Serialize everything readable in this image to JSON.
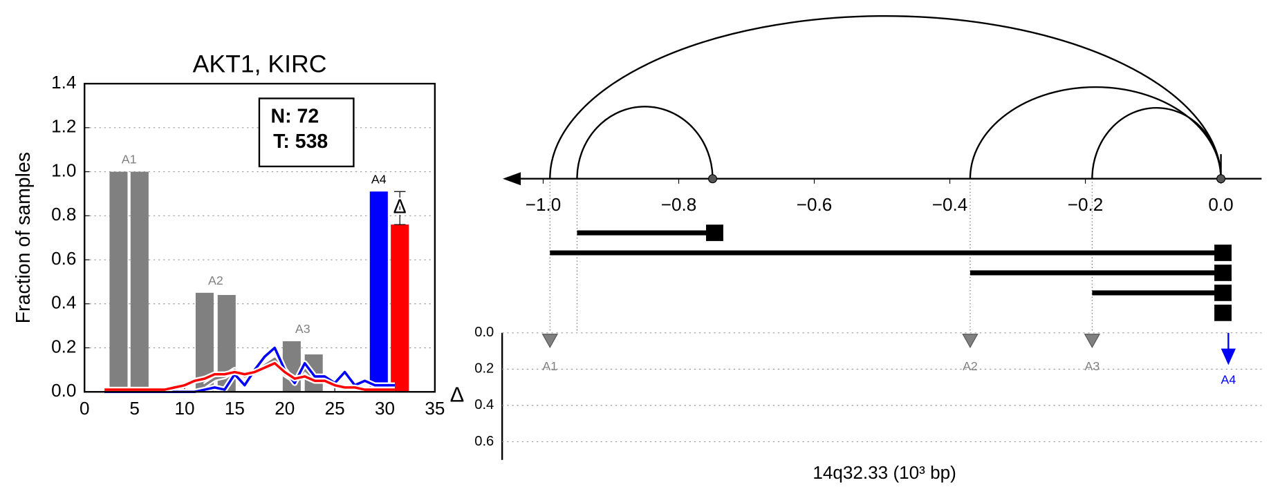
{
  "chart_data": [
    {
      "type": "bar",
      "title": "AKT1, KIRC",
      "ylabel": "Fraction of samples",
      "xlim": [
        0,
        35
      ],
      "xticks": [
        0,
        5,
        10,
        15,
        20,
        25,
        30,
        35
      ],
      "ylim": [
        0,
        1.4
      ],
      "yticks": [
        {
          "value": 0,
          "label": "0.0"
        },
        {
          "value": 0.2,
          "label": "0.2"
        },
        {
          "value": 0.4,
          "label": "0.4"
        },
        {
          "value": 0.6,
          "label": "0.6"
        },
        {
          "value": 0.8,
          "label": "0.8"
        },
        {
          "value": 1.0,
          "label": "1.0"
        },
        {
          "value": 1.2,
          "label": "1.2"
        },
        {
          "value": 1.4,
          "label": "1.4"
        }
      ],
      "grid": true,
      "box_labels": [
        "N: 72",
        "T: 538"
      ],
      "groups": [
        {
          "name": "A1",
          "label_color": "#808080",
          "x": [
            3.4,
            5.5
          ],
          "values": [
            1.0,
            1.0
          ],
          "colors": [
            "#808080",
            "#808080"
          ]
        },
        {
          "name": "A2",
          "label_color": "#808080",
          "x": [
            12.0,
            14.2
          ],
          "values": [
            0.45,
            0.44
          ],
          "colors": [
            "#808080",
            "#808080"
          ]
        },
        {
          "name": "A3",
          "label_color": "#808080",
          "x": [
            20.7,
            22.9
          ],
          "values": [
            0.23,
            0.17
          ],
          "colors": [
            "#808080",
            "#808080"
          ]
        },
        {
          "name": "A4",
          "label_color": "#000000",
          "x": [
            29.4,
            31.5
          ],
          "values": [
            0.91,
            0.76
          ],
          "colors": [
            "#0000ff",
            "#ff0000"
          ],
          "delta_error": 0.15,
          "delta_label": "Δ"
        }
      ],
      "lines": {
        "x": [
          2,
          3,
          4,
          5,
          6,
          7,
          8,
          9,
          10,
          11,
          12,
          13,
          14,
          15,
          16,
          17,
          18,
          19,
          20,
          21,
          22,
          23,
          24,
          25,
          26,
          27,
          28,
          29,
          30,
          31
        ],
        "series": [
          {
            "color": "#808080",
            "values": [
              null,
              null,
              null,
              null,
              null,
              null,
              null,
              null,
              null,
              null,
              0.03,
              0.06,
              0.07,
              0.1,
              0.07,
              0.09,
              0.12,
              0.15,
              0.08,
              0.05,
              0.1,
              0.06,
              0.06,
              null,
              null,
              null,
              null,
              null,
              null,
              null
            ]
          },
          {
            "color": "#0000ff",
            "values": [
              0,
              0,
              0,
              0,
              0,
              0,
              0,
              0,
              0,
              0,
              0.01,
              0.02,
              0.01,
              0.08,
              0.03,
              0.1,
              0.16,
              0.2,
              0.1,
              0.04,
              0.13,
              0.07,
              0.07,
              0.04,
              0.09,
              0.03,
              0.05,
              0.03,
              0.03,
              0.03
            ]
          },
          {
            "color": "#ff0000",
            "values": [
              0.01,
              0.01,
              0.01,
              0.01,
              0.01,
              0.01,
              0.01,
              0.02,
              0.03,
              0.05,
              0.06,
              0.08,
              0.08,
              0.09,
              0.08,
              0.09,
              0.11,
              0.13,
              0.09,
              0.06,
              0.07,
              0.05,
              0.05,
              0.03,
              0.02,
              0.02,
              0.01,
              0.01,
              0.01,
              0.01
            ]
          }
        ]
      }
    },
    {
      "type": "arc",
      "xlabel": "14q32.33 (10³ bp)",
      "ylabel": "Δ",
      "xlim": [
        -1.05,
        0.06
      ],
      "xticks": [
        {
          "value": -1.0,
          "label": "−1.0"
        },
        {
          "value": -0.8,
          "label": "−0.8"
        },
        {
          "value": -0.6,
          "label": "−0.6"
        },
        {
          "value": -0.4,
          "label": "−0.4"
        },
        {
          "value": -0.2,
          "label": "−0.2"
        },
        {
          "value": 0.0,
          "label": "0.0"
        }
      ],
      "arcs": [
        {
          "start": -0.99,
          "end": 0.0
        },
        {
          "start": -0.95,
          "end": -0.75
        },
        {
          "start": -0.37,
          "end": 0.0
        },
        {
          "start": -0.19,
          "end": 0.0
        }
      ],
      "isoforms": [
        {
          "start": -0.95,
          "end": -0.75
        },
        {
          "start": -0.99,
          "end": 0.0
        },
        {
          "start": -0.37,
          "end": 0.0
        },
        {
          "start": -0.19,
          "end": 0.0
        },
        {
          "start": 0.0,
          "end": 0.0
        }
      ],
      "ylim": [
        0,
        0.7
      ],
      "yticks": [
        {
          "value": 0,
          "label": "0.0"
        },
        {
          "value": 0.2,
          "label": "0.2"
        },
        {
          "value": 0.4,
          "label": "0.4"
        },
        {
          "value": 0.6,
          "label": "0.6"
        }
      ],
      "events": [
        {
          "label": "A1",
          "x": -0.99,
          "delta": 0.03,
          "color": "#808080"
        },
        {
          "label": "A2",
          "x": -0.37,
          "delta": 0.03,
          "color": "#808080"
        },
        {
          "label": "A3",
          "x": -0.19,
          "delta": 0.03,
          "color": "#808080"
        },
        {
          "label": "A4",
          "x": 0.011,
          "delta": 0.15,
          "color": "#0000ff"
        }
      ]
    }
  ]
}
